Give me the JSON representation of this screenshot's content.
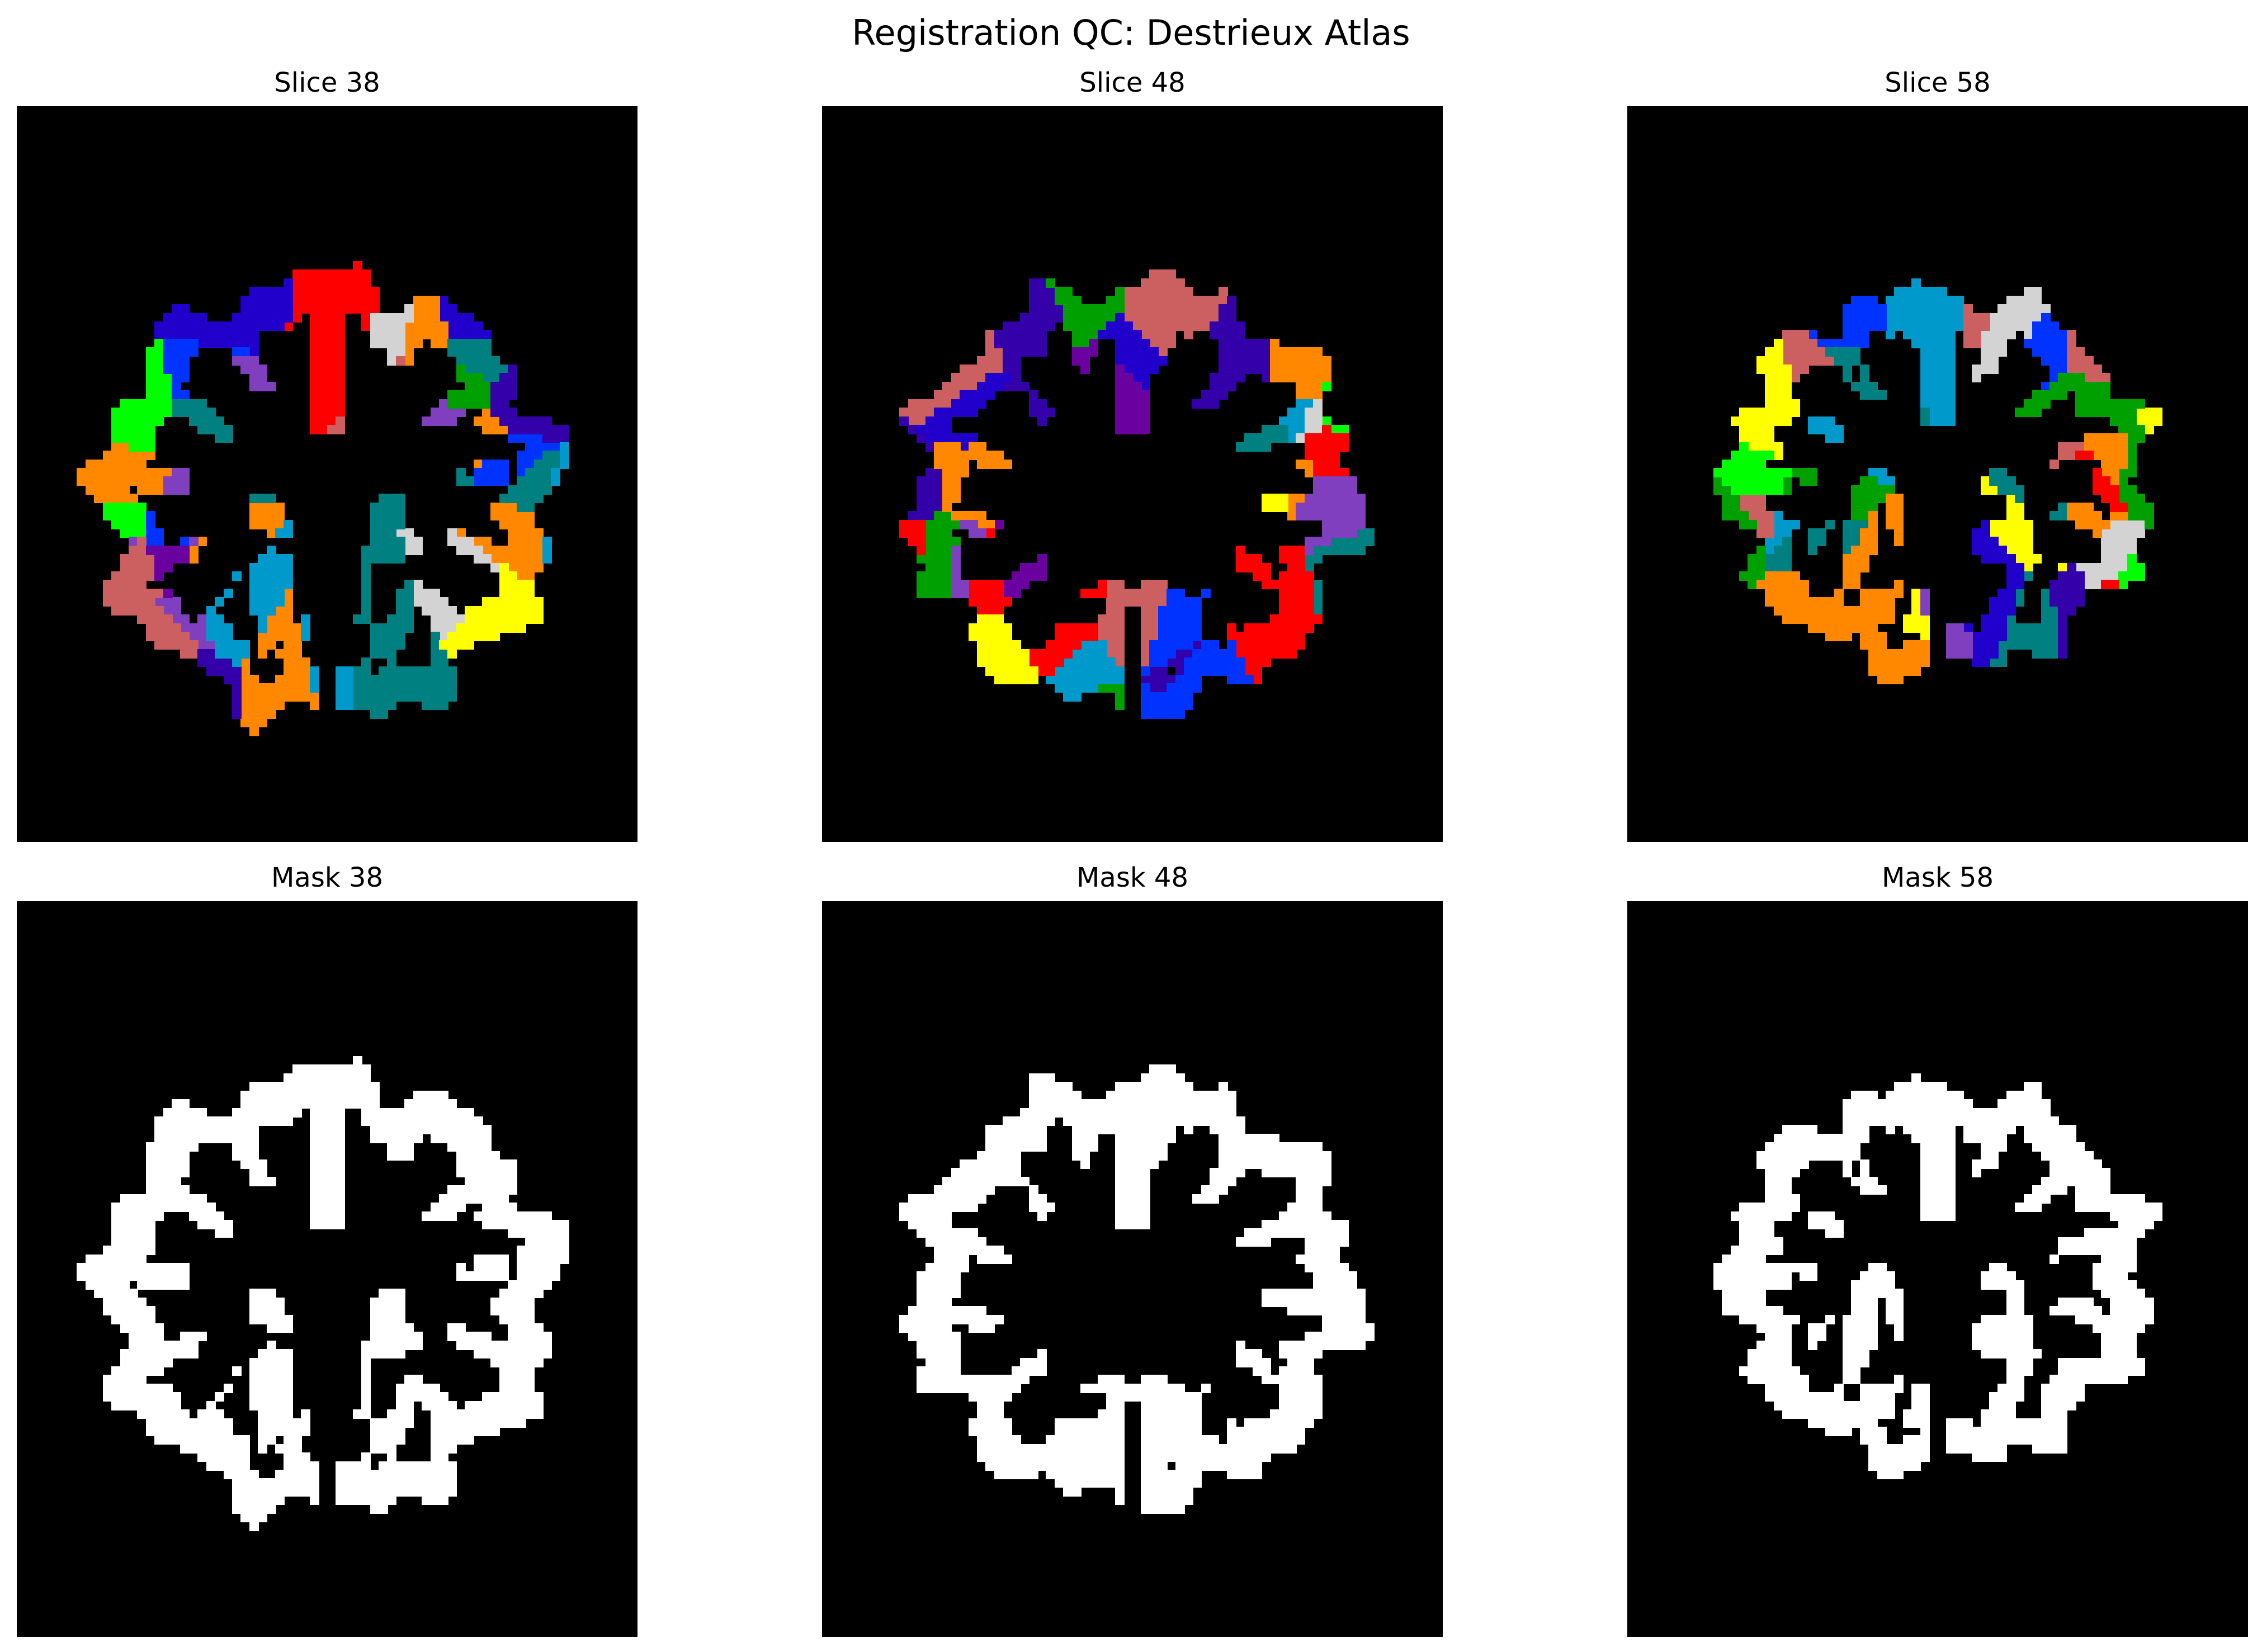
{
  "figure": {
    "title": "Registration QC: Destrieux Atlas",
    "background": "#ffffff",
    "panel_background": "#000000"
  },
  "panels": [
    {
      "row": 0,
      "col": 0,
      "title": "Slice 38",
      "kind": "atlas"
    },
    {
      "row": 0,
      "col": 1,
      "title": "Slice 48",
      "kind": "atlas"
    },
    {
      "row": 0,
      "col": 2,
      "title": "Slice 58",
      "kind": "atlas"
    },
    {
      "row": 1,
      "col": 0,
      "title": "Mask 38",
      "kind": "mask"
    },
    {
      "row": 1,
      "col": 1,
      "title": "Mask 48",
      "kind": "mask"
    },
    {
      "row": 1,
      "col": 2,
      "title": "Mask 58",
      "kind": "mask"
    }
  ],
  "colors": {
    "atlas_palette": [
      "#6a00a0",
      "#0033ff",
      "#00a000",
      "#00ff00",
      "#ffff00",
      "#ff8800",
      "#ff0000",
      "#0099cc",
      "#008080",
      "#7f3fbf",
      "#3300aa",
      "#d3d3d3",
      "#cc6060",
      "#2200cc"
    ],
    "mask": "#ffffff"
  }
}
